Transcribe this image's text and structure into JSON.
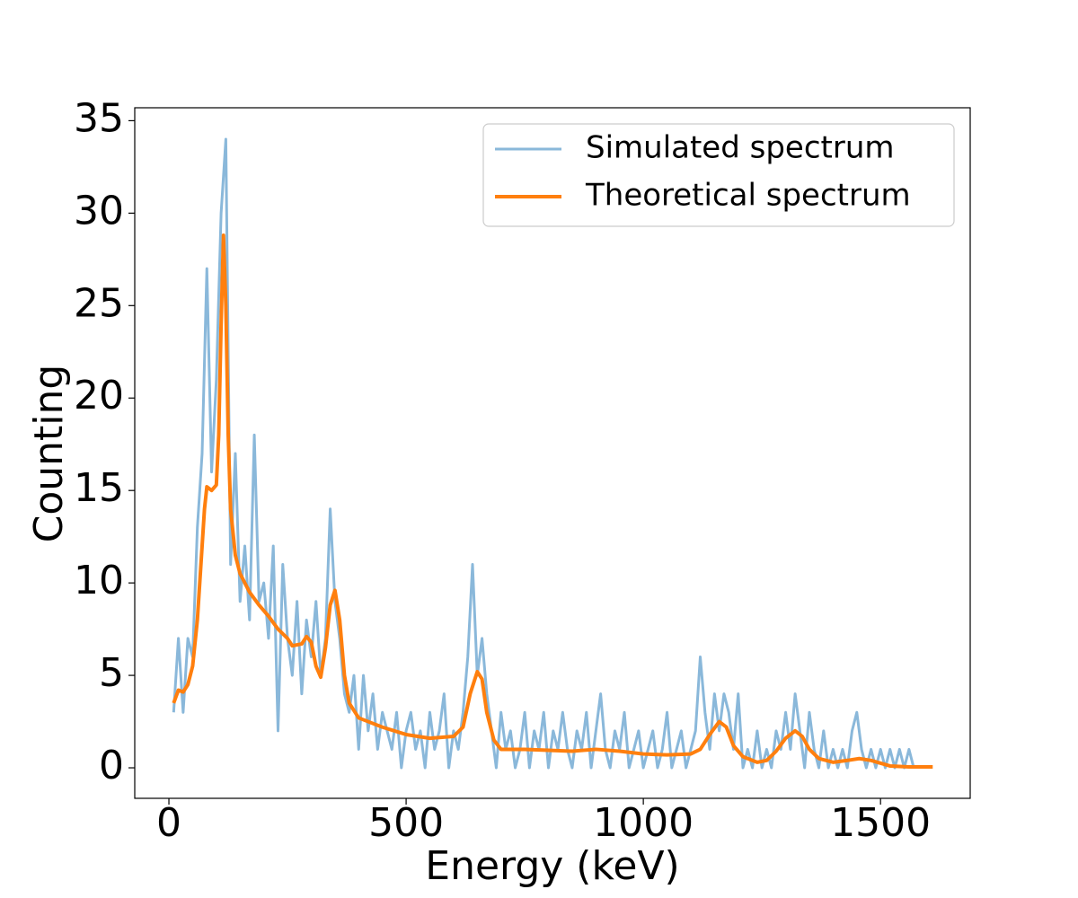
{
  "chart_data": {
    "type": "line",
    "xlabel": "Energy (keV)",
    "ylabel": "Counting",
    "xlim": [
      -72,
      1689
    ],
    "ylim": [
      -1.65,
      35.7
    ],
    "xticks": [
      0,
      500,
      1000,
      1500
    ],
    "yticks": [
      0,
      5,
      10,
      15,
      20,
      25,
      30,
      35
    ],
    "legend": "upper right",
    "grid": false,
    "series": [
      {
        "name": "Simulated spectrum",
        "color": "#8ab8da",
        "width": 3,
        "x": [
          10,
          20,
          30,
          40,
          50,
          60,
          70,
          80,
          90,
          100,
          110,
          120,
          130,
          140,
          150,
          160,
          170,
          180,
          190,
          200,
          210,
          220,
          230,
          240,
          250,
          260,
          270,
          280,
          290,
          300,
          310,
          320,
          330,
          340,
          350,
          360,
          370,
          380,
          390,
          400,
          410,
          420,
          430,
          440,
          450,
          460,
          470,
          480,
          490,
          500,
          510,
          520,
          530,
          540,
          550,
          560,
          570,
          580,
          590,
          600,
          610,
          620,
          630,
          640,
          650,
          660,
          670,
          680,
          690,
          700,
          710,
          720,
          730,
          740,
          750,
          760,
          770,
          780,
          790,
          800,
          810,
          820,
          830,
          840,
          850,
          860,
          870,
          880,
          890,
          900,
          910,
          920,
          930,
          940,
          950,
          960,
          970,
          980,
          990,
          1000,
          1010,
          1020,
          1030,
          1040,
          1050,
          1060,
          1070,
          1080,
          1090,
          1100,
          1110,
          1120,
          1130,
          1140,
          1150,
          1160,
          1170,
          1180,
          1190,
          1200,
          1210,
          1220,
          1230,
          1240,
          1250,
          1260,
          1270,
          1280,
          1290,
          1300,
          1310,
          1320,
          1330,
          1340,
          1350,
          1360,
          1370,
          1380,
          1390,
          1400,
          1410,
          1420,
          1430,
          1440,
          1450,
          1460,
          1470,
          1480,
          1490,
          1500,
          1510,
          1520,
          1530,
          1540,
          1550,
          1560,
          1570
        ],
        "values": [
          3,
          7,
          3,
          7,
          6,
          13,
          17,
          27,
          16,
          21,
          30,
          34,
          11,
          17,
          9,
          12,
          8,
          18,
          9,
          10,
          7,
          12,
          2,
          11,
          7,
          5,
          9,
          4,
          8,
          6,
          9,
          5,
          7,
          14,
          9,
          7,
          4,
          3,
          5,
          1,
          5,
          2,
          4,
          1,
          3,
          2,
          1,
          3,
          0,
          2,
          3,
          1,
          2,
          0,
          3,
          1,
          2,
          4,
          0,
          2,
          1,
          3,
          6,
          11,
          5,
          7,
          4,
          2,
          0,
          3,
          1,
          2,
          0,
          1,
          3,
          0,
          2,
          1,
          3,
          0,
          2,
          1,
          3,
          1,
          0,
          2,
          1,
          3,
          0,
          2,
          4,
          1,
          0,
          2,
          1,
          3,
          0,
          1,
          2,
          0,
          1,
          2,
          0,
          1,
          3,
          0,
          1,
          2,
          0,
          1,
          2,
          6,
          3,
          1,
          4,
          2,
          4,
          3,
          1,
          4,
          0,
          1,
          0,
          2,
          0,
          1,
          0,
          2,
          1,
          3,
          1,
          4,
          2,
          0,
          3,
          1,
          0,
          2,
          0,
          1,
          0,
          1,
          0,
          2,
          3,
          1,
          0,
          1,
          0,
          1,
          0,
          1,
          0,
          1,
          0,
          1,
          0
        ]
      },
      {
        "name": "Theoretical spectrum",
        "color": "#ff7f0e",
        "width": 4,
        "x": [
          10,
          20,
          30,
          40,
          50,
          60,
          70,
          75,
          80,
          90,
          100,
          105,
          110,
          115,
          120,
          125,
          130,
          140,
          150,
          170,
          190,
          210,
          230,
          250,
          260,
          280,
          290,
          300,
          310,
          320,
          330,
          340,
          350,
          360,
          370,
          380,
          400,
          420,
          450,
          500,
          550,
          600,
          620,
          635,
          650,
          660,
          670,
          685,
          700,
          750,
          800,
          850,
          900,
          950,
          1000,
          1050,
          1100,
          1120,
          1140,
          1160,
          1175,
          1190,
          1210,
          1240,
          1260,
          1280,
          1300,
          1320,
          1335,
          1350,
          1370,
          1400,
          1430,
          1455,
          1480,
          1520,
          1560,
          1610
        ],
        "values": [
          3.5,
          4.2,
          4.1,
          4.5,
          5.5,
          8,
          12,
          14,
          15.2,
          15,
          15.3,
          18,
          24,
          28.8,
          25,
          18,
          14,
          11.5,
          10.5,
          9.5,
          8.8,
          8.2,
          7.5,
          7,
          6.6,
          6.7,
          7.1,
          6.8,
          5.5,
          4.9,
          6.5,
          8.8,
          9.6,
          8,
          5,
          3.5,
          2.7,
          2.5,
          2.2,
          1.8,
          1.6,
          1.7,
          2.2,
          4,
          5.2,
          4.8,
          3,
          1.5,
          1.0,
          1.0,
          0.95,
          0.9,
          1.0,
          0.9,
          0.75,
          0.7,
          0.75,
          1.0,
          1.8,
          2.5,
          2.2,
          1.2,
          0.6,
          0.3,
          0.4,
          0.9,
          1.6,
          2.0,
          1.7,
          1.0,
          0.5,
          0.3,
          0.4,
          0.5,
          0.4,
          0.1,
          0.05,
          0.05
        ]
      }
    ]
  }
}
